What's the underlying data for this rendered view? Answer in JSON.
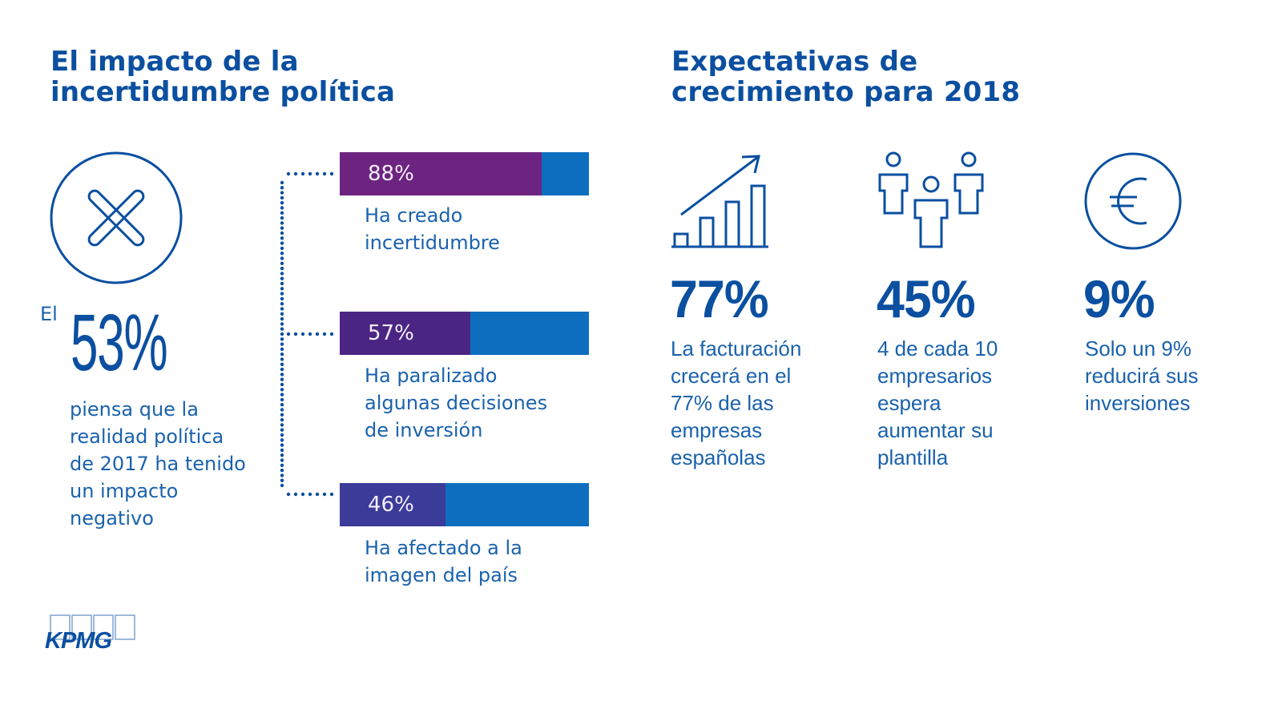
{
  "left_section": {
    "title_lines": [
      "El impacto de la",
      "incertidumbre política"
    ],
    "icon": "x-circle-icon",
    "prefix": "El",
    "headline_value": "53%",
    "description_lines": [
      "piensa que la",
      "realidad política",
      "de 2017 ha tenido",
      "un impacto",
      "negativo"
    ],
    "bars": [
      {
        "value_label": "88%",
        "value": 88,
        "fill_color": "#6d2380",
        "label_lines": [
          "Ha creado",
          "incertidumbre"
        ]
      },
      {
        "value_label": "57%",
        "value": 57,
        "fill_color": "#4b2583",
        "label_lines": [
          "Ha paralizado",
          "algunas decisiones",
          "de inversión"
        ]
      },
      {
        "value_label": "46%",
        "value": 46,
        "fill_color": "#3b3b99",
        "label_lines": [
          "Ha afectado a la",
          "imagen del país"
        ]
      }
    ],
    "bar_track_color": "#0d6ebf"
  },
  "right_section": {
    "title_lines": [
      "Expectativas de",
      "crecimiento para 2018"
    ],
    "stats": [
      {
        "icon": "growth-chart-icon",
        "value": "77%",
        "description_lines": [
          "La facturación",
          "crecerá en el",
          "77% de las",
          "empresas",
          "españolas"
        ]
      },
      {
        "icon": "people-group-icon",
        "value": "45%",
        "description_lines": [
          "4 de cada 10",
          "empresarios",
          "espera",
          "aumentar su",
          "plantilla"
        ]
      },
      {
        "icon": "euro-circle-icon",
        "value": "9%",
        "description_lines": [
          "Solo un 9%",
          "reducirá sus",
          "inversiones"
        ]
      }
    ]
  },
  "footer": {
    "logo_text": "KPMG"
  },
  "colors": {
    "primary_blue": "#0b4fa0",
    "text_blue": "#1a62ad"
  }
}
